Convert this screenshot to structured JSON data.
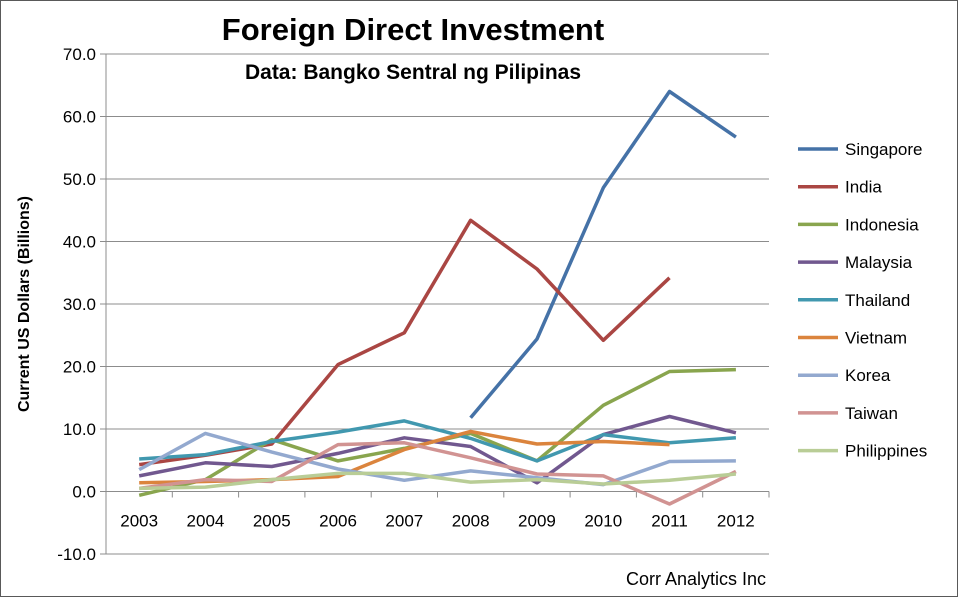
{
  "chart_data": {
    "type": "line",
    "title": "Foreign Direct Investment",
    "subtitle": "Data: Bangko Sentral ng Pilipinas",
    "ylabel": "Current US Dollars (Billions)",
    "xlabel": "",
    "credit": "Corr Analytics Inc",
    "ylim": [
      -10,
      70
    ],
    "y_ticks": [
      "-10.0",
      "0.0",
      "10.0",
      "20.0",
      "30.0",
      "40.0",
      "50.0",
      "60.0",
      "70.0"
    ],
    "y_tick_values": [
      -10,
      0,
      10,
      20,
      30,
      40,
      50,
      60,
      70
    ],
    "categories": [
      "2003",
      "2004",
      "2005",
      "2006",
      "2007",
      "2008",
      "2009",
      "2010",
      "2011",
      "2012"
    ],
    "grid": "horizontal",
    "legend_position": "right",
    "series": [
      {
        "name": "Singapore",
        "color": "#4572A7",
        "values": [
          null,
          null,
          null,
          null,
          null,
          11.8,
          24.4,
          48.6,
          64.0,
          56.7
        ]
      },
      {
        "name": "India",
        "color": "#AA4643",
        "values": [
          4.3,
          5.8,
          7.6,
          20.3,
          25.4,
          43.4,
          35.6,
          24.2,
          34.2,
          null
        ]
      },
      {
        "name": "Indonesia",
        "color": "#89A54E",
        "values": [
          -0.6,
          1.9,
          8.3,
          4.9,
          6.9,
          9.3,
          4.9,
          13.8,
          19.2,
          19.5
        ]
      },
      {
        "name": "Malaysia",
        "color": "#71588F",
        "values": [
          2.5,
          4.6,
          4.0,
          6.1,
          8.6,
          7.2,
          1.4,
          9.1,
          12.0,
          9.4
        ]
      },
      {
        "name": "Thailand",
        "color": "#4198AF",
        "values": [
          5.2,
          5.9,
          8.0,
          9.5,
          11.3,
          8.5,
          4.9,
          9.1,
          7.8,
          8.6
        ]
      },
      {
        "name": "Vietnam",
        "color": "#DB843D",
        "values": [
          1.4,
          1.6,
          1.9,
          2.4,
          6.7,
          9.6,
          7.6,
          8.0,
          7.5,
          null
        ]
      },
      {
        "name": "Korea",
        "color": "#93A9CF",
        "values": [
          3.5,
          9.3,
          6.3,
          3.6,
          1.8,
          3.3,
          2.2,
          1.1,
          4.8,
          4.9
        ]
      },
      {
        "name": "Taiwan",
        "color": "#D19392",
        "values": [
          0.5,
          1.9,
          1.6,
          7.5,
          7.8,
          5.4,
          2.8,
          2.5,
          -2.0,
          3.2
        ]
      },
      {
        "name": "Philippines",
        "color": "#B9CD96",
        "values": [
          0.5,
          0.7,
          1.9,
          2.9,
          2.9,
          1.5,
          1.9,
          1.2,
          1.8,
          2.8
        ]
      }
    ]
  }
}
